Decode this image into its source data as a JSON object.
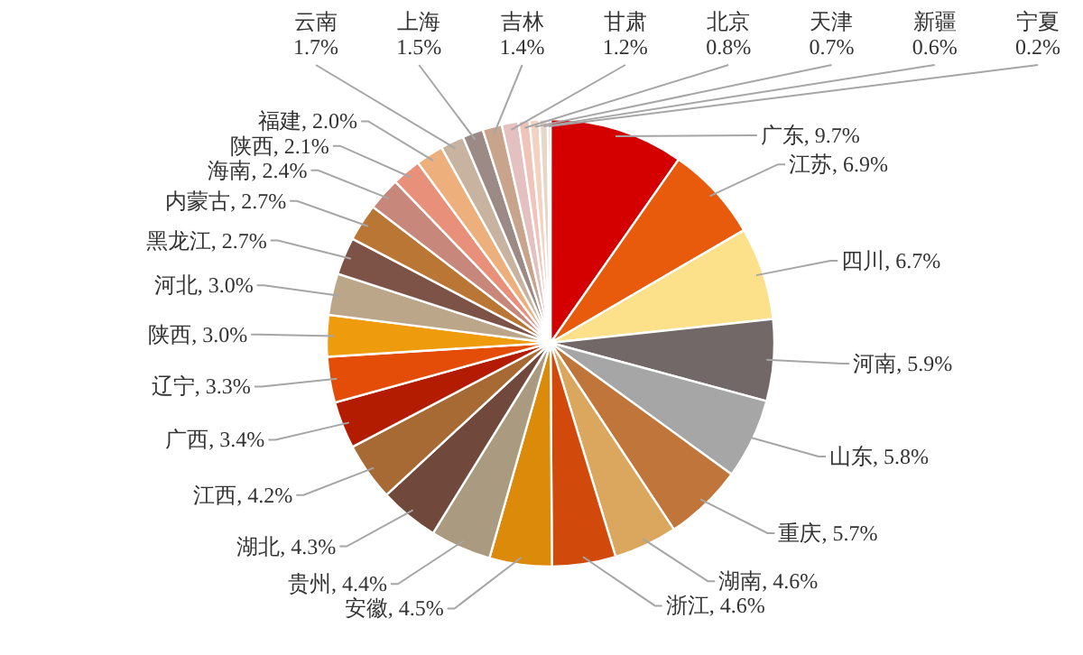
{
  "chart_data": {
    "type": "pie",
    "categories": [
      "广东",
      "江苏",
      "四川",
      "河南",
      "山东",
      "重庆",
      "湖南",
      "浙江",
      "安徽",
      "贵州",
      "湖北",
      "江西",
      "广西",
      "辽宁",
      "陕西",
      "河北",
      "黑龙江",
      "内蒙古",
      "海南",
      "陕西",
      "福建",
      "云南",
      "上海",
      "吉林",
      "甘肃",
      "北京",
      "天津",
      "新疆",
      "宁夏"
    ],
    "values": [
      9.7,
      6.9,
      6.7,
      5.9,
      5.8,
      5.7,
      4.6,
      4.6,
      4.5,
      4.4,
      4.3,
      4.2,
      3.4,
      3.3,
      3.0,
      3.0,
      2.7,
      2.7,
      2.4,
      2.1,
      2.0,
      1.7,
      1.5,
      1.4,
      1.2,
      0.8,
      0.7,
      0.6,
      0.2
    ],
    "value_labels": [
      "9.7%",
      "6.9%",
      "6.7%",
      "5.9%",
      "5.8%",
      "5.7%",
      "4.6%",
      "4.6%",
      "4.5%",
      "4.4%",
      "4.3%",
      "4.2%",
      "3.4%",
      "3.3%",
      "3.0%",
      "3.0%",
      "2.7%",
      "2.7%",
      "2.4%",
      "2.1%",
      "2.0%",
      "1.7%",
      "1.5%",
      "1.4%",
      "1.2%",
      "0.8%",
      "0.7%",
      "0.6%",
      "0.2%"
    ],
    "colors": [
      "#d40000",
      "#e85a0c",
      "#fde08a",
      "#716867",
      "#a6a6a6",
      "#c0763a",
      "#dba75e",
      "#d24a0b",
      "#dc8a0a",
      "#a99a80",
      "#71493c",
      "#a86a34",
      "#b31c00",
      "#e44d08",
      "#ee9b0e",
      "#bca68a",
      "#7d5347",
      "#b97634",
      "#c8877b",
      "#e8907a",
      "#edb07d",
      "#c7b39f",
      "#9b8a86",
      "#c9a48d",
      "#e4c0c0",
      "#f0c4b8",
      "#f3d2c2",
      "#e7d7c8",
      "#d9d0c6"
    ]
  }
}
